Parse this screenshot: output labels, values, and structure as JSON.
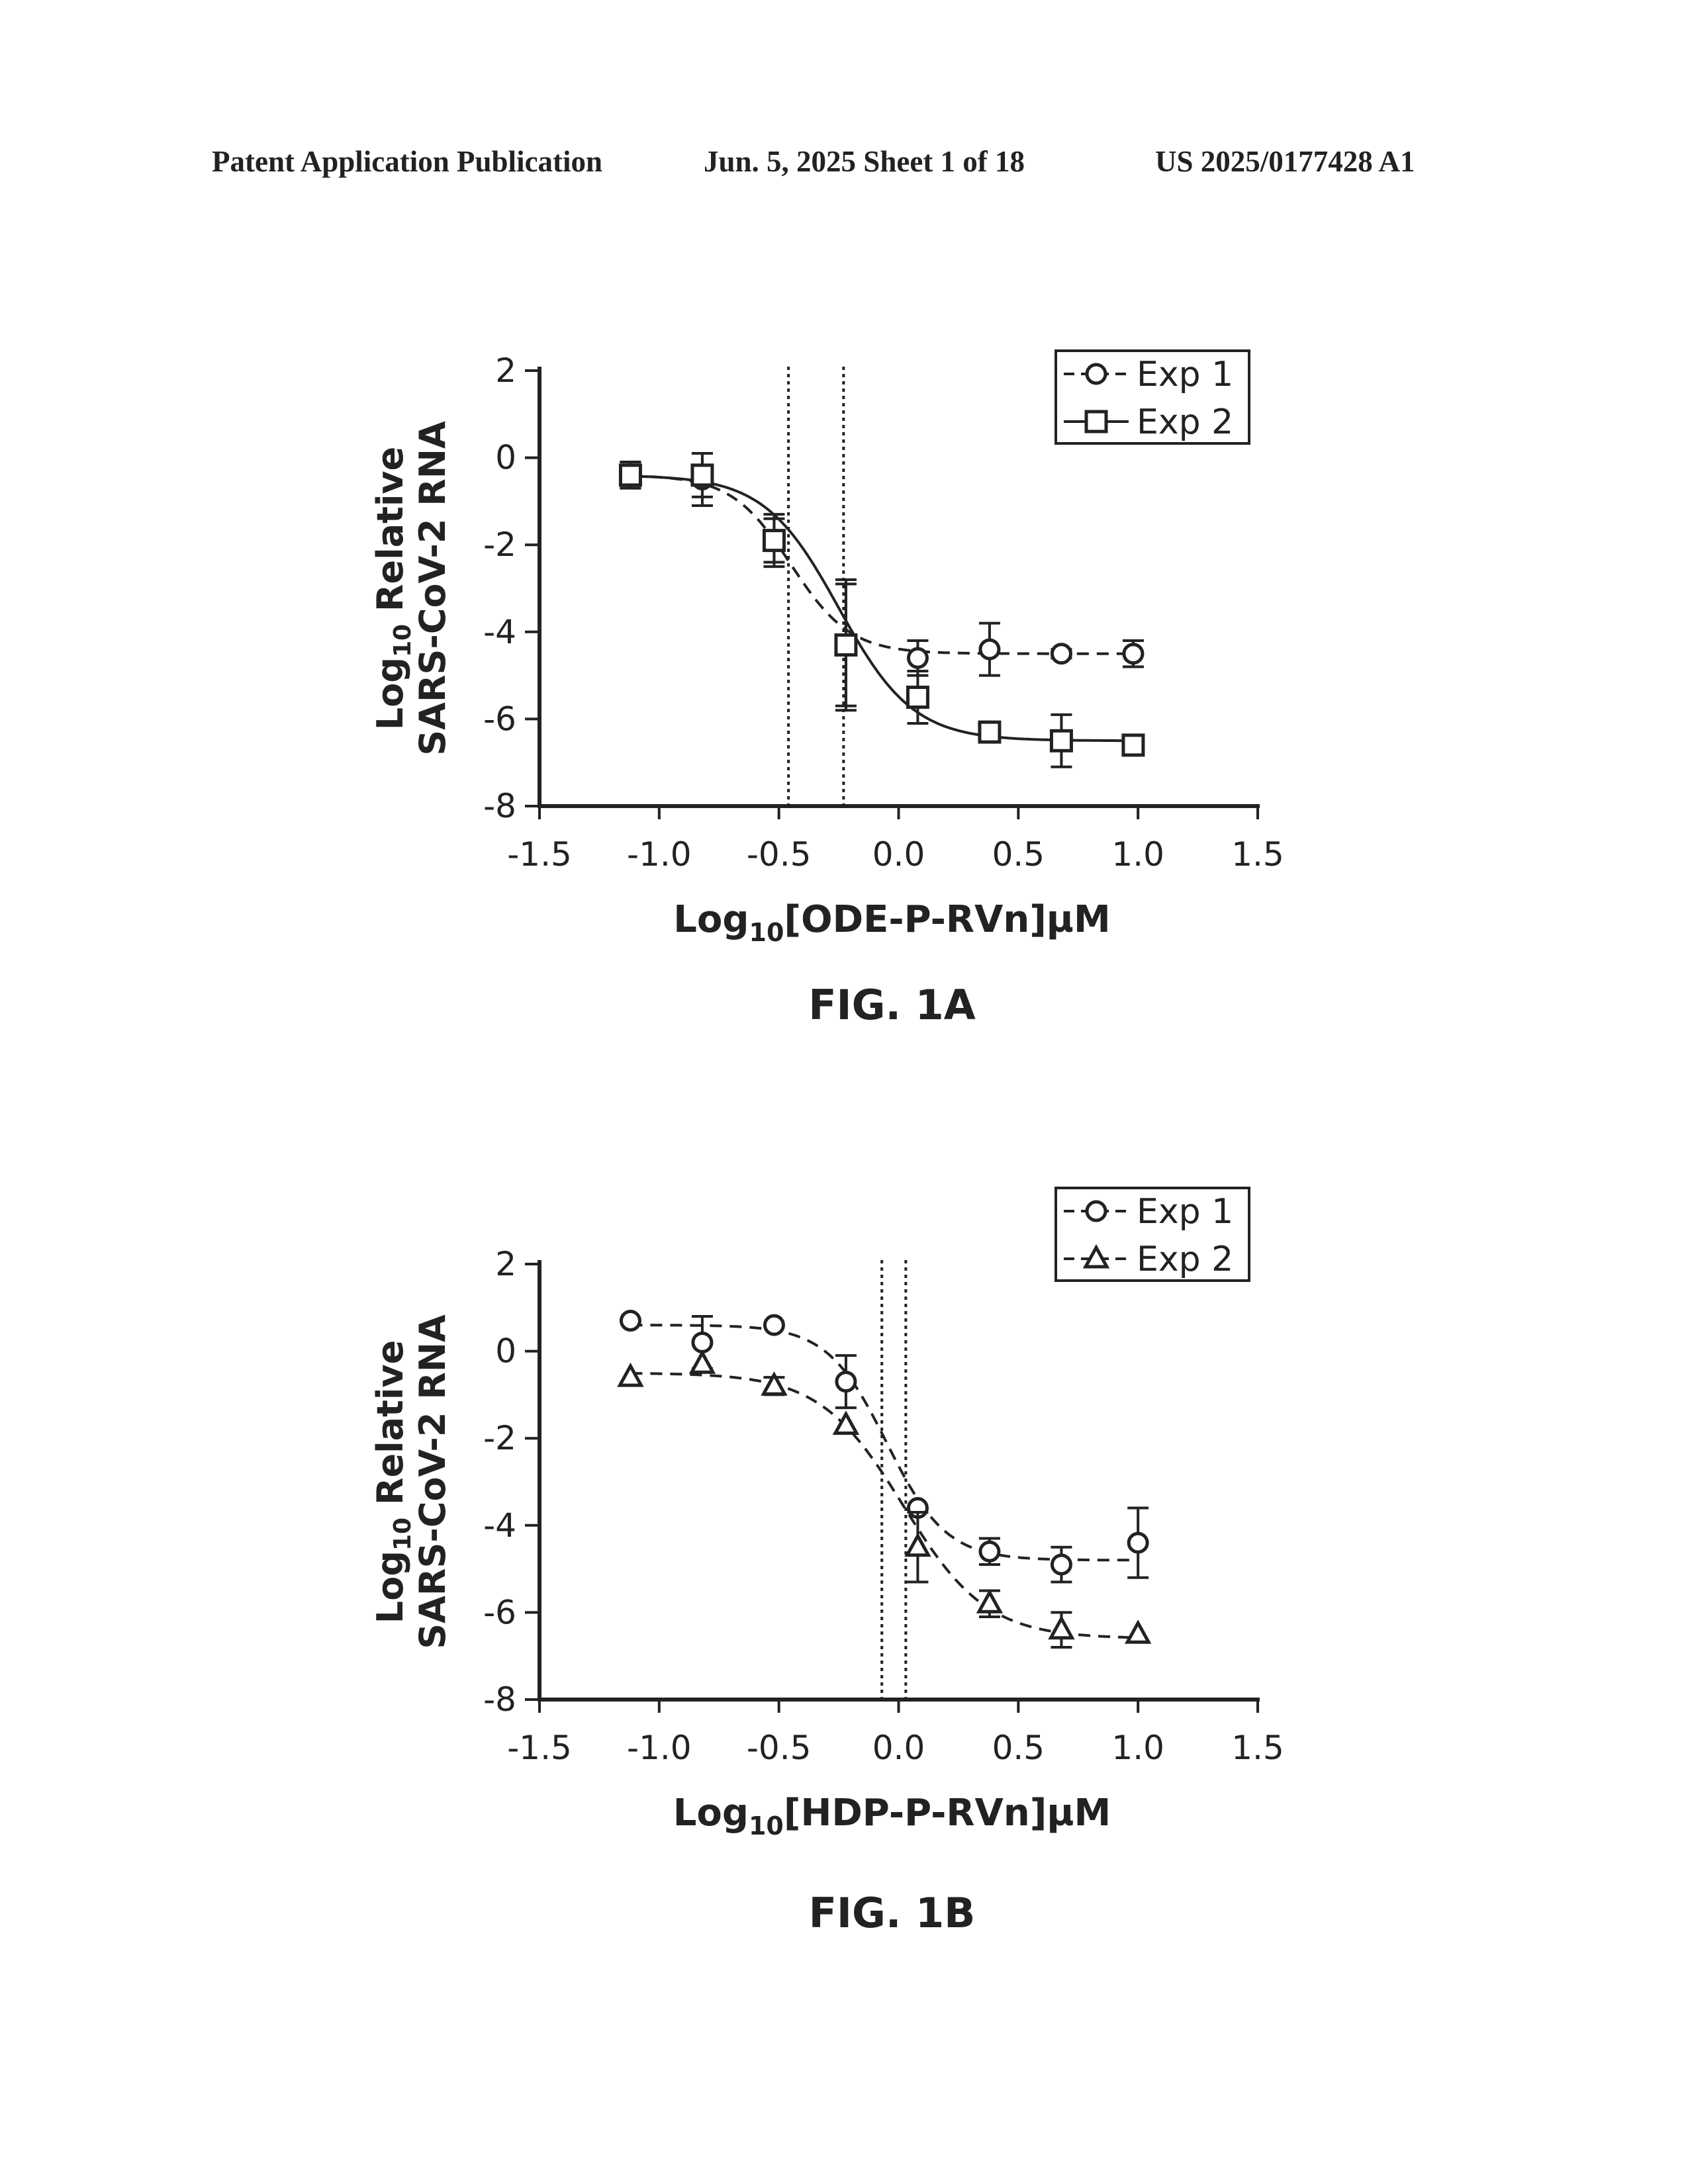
{
  "header": {
    "left": "Patent Application Publication",
    "date_sheet": "Jun. 5, 2025   Sheet 1 of 18",
    "number": "US 2025/0177428 A1"
  },
  "chart_data": [
    {
      "type": "scatter",
      "figure_label": "FIG. 1A",
      "xlabel_prefix": "Log",
      "xlabel_sub": "10",
      "xlabel_rest": "[ODE-P-RVn]µM",
      "ylabel_line1_prefix": "Log",
      "ylabel_line1_sub": "10",
      "ylabel_line1_rest": " Relative",
      "ylabel_line2": "SARS-CoV-2 RNA",
      "xlim": [
        -1.5,
        1.5
      ],
      "ylim": [
        -8,
        2
      ],
      "xticks": [
        -1.5,
        -1.0,
        -0.5,
        0.0,
        0.5,
        1.0,
        1.5
      ],
      "xtick_labels": [
        "-1.5",
        "-1.0",
        "-0.5",
        "0.0",
        "0.5",
        "1.0",
        "1.5"
      ],
      "yticks": [
        -8,
        -6,
        -4,
        -2,
        0,
        2
      ],
      "ytick_labels": [
        "-8",
        "-6",
        "-4",
        "-2",
        "0",
        "2"
      ],
      "legend_position": "top-right",
      "vlines": [
        -0.46,
        -0.23
      ],
      "series": [
        {
          "name": "Exp 1",
          "marker": "circle",
          "line": "dashed",
          "x": [
            -1.12,
            -0.82,
            -0.52,
            -0.22,
            0.08,
            0.38,
            0.68,
            0.98
          ],
          "y": [
            -0.4,
            -0.5,
            -1.9,
            -4.3,
            -4.6,
            -4.4,
            -4.5,
            -4.5
          ],
          "err": [
            0.3,
            0.6,
            0.5,
            1.5,
            0.4,
            0.6,
            0.1,
            0.3
          ],
          "fit": {
            "top": -0.4,
            "bottom": -4.5,
            "x50": -0.45,
            "slope": 3.5
          }
        },
        {
          "name": "Exp 2",
          "marker": "square",
          "line": "solid",
          "x": [
            -1.12,
            -0.82,
            -0.52,
            -0.22,
            0.08,
            0.38,
            0.68,
            0.98
          ],
          "y": [
            -0.4,
            -0.4,
            -1.9,
            -4.3,
            -5.5,
            -6.3,
            -6.5,
            -6.6
          ],
          "err": [
            0.3,
            0.5,
            0.6,
            1.4,
            0.6,
            0.2,
            0.6,
            0.2
          ],
          "fit": {
            "top": -0.4,
            "bottom": -6.5,
            "x50": -0.25,
            "slope": 2.8
          }
        }
      ]
    },
    {
      "type": "scatter",
      "figure_label": "FIG. 1B",
      "xlabel_prefix": "Log",
      "xlabel_sub": "10",
      "xlabel_rest": "[HDP-P-RVn]µM",
      "ylabel_line1_prefix": "Log",
      "ylabel_line1_sub": "10",
      "ylabel_line1_rest": " Relative",
      "ylabel_line2": "SARS-CoV-2 RNA",
      "xlim": [
        -1.5,
        1.5
      ],
      "ylim": [
        -8,
        2
      ],
      "xticks": [
        -1.5,
        -1.0,
        -0.5,
        0.0,
        0.5,
        1.0,
        1.5
      ],
      "xtick_labels": [
        "-1.5",
        "-1.0",
        "-0.5",
        "0.0",
        "0.5",
        "1.0",
        "1.5"
      ],
      "yticks": [
        -8,
        -6,
        -4,
        -2,
        0,
        2
      ],
      "ytick_labels": [
        "-8",
        "-6",
        "-4",
        "-2",
        "0",
        "2"
      ],
      "legend_position": "top-right",
      "vlines": [
        -0.07,
        0.03
      ],
      "series": [
        {
          "name": "Exp 1",
          "marker": "circle",
          "line": "dashed",
          "x": [
            -1.12,
            -0.82,
            -0.52,
            -0.22,
            0.08,
            0.38,
            0.68,
            1.0
          ],
          "y": [
            0.7,
            0.2,
            0.6,
            -0.7,
            -3.6,
            -4.6,
            -4.9,
            -4.4
          ],
          "err": [
            0.0,
            0.6,
            0.0,
            0.6,
            0.0,
            0.3,
            0.4,
            0.8
          ],
          "fit": {
            "top": 0.6,
            "bottom": -4.8,
            "x50": -0.05,
            "slope": 3.5
          }
        },
        {
          "name": "Exp 2",
          "marker": "triangle",
          "line": "dashed",
          "x": [
            -1.12,
            -0.82,
            -0.52,
            -0.22,
            0.08,
            0.38,
            0.68,
            1.0
          ],
          "y": [
            -0.6,
            -0.3,
            -0.8,
            -1.7,
            -4.5,
            -5.8,
            -6.4,
            -6.5
          ],
          "err": [
            0.0,
            0.0,
            0.2,
            0.0,
            0.8,
            0.3,
            0.4,
            0.0
          ],
          "fit": {
            "top": -0.5,
            "bottom": -6.6,
            "x50": 0.02,
            "slope": 2.5
          }
        }
      ]
    }
  ]
}
